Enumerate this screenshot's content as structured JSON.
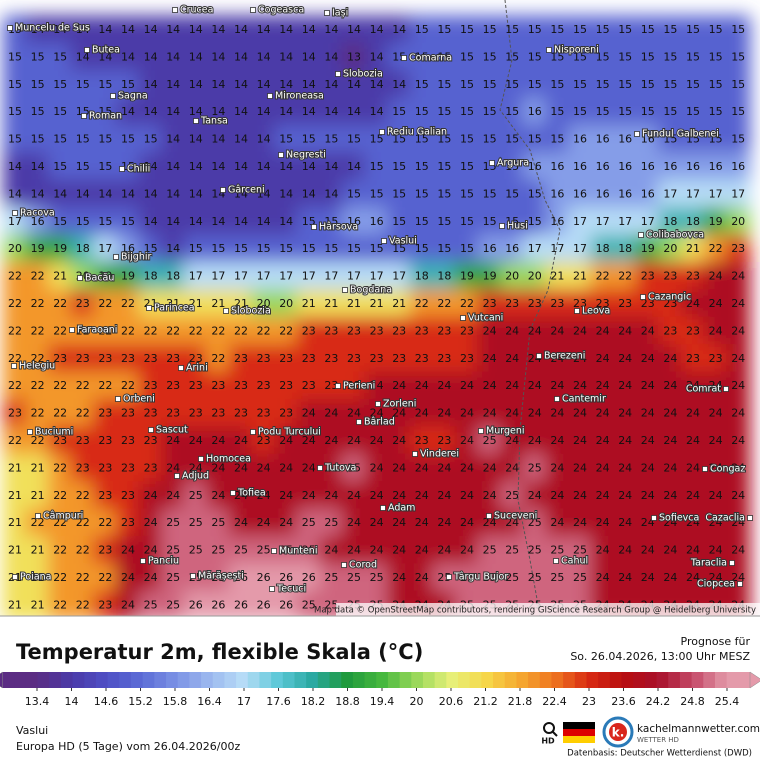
{
  "map": {
    "attribution": "Map data © OpenStreetMap contributors, rendering GIScience Research Group @ Heidelberg University",
    "grid": [
      [
        15,
        14,
        14,
        14,
        14,
        14,
        14,
        14,
        14,
        14,
        14,
        14,
        14,
        14,
        14,
        14,
        14,
        14,
        15,
        15,
        15,
        15,
        15,
        15,
        15,
        15,
        15,
        15,
        15,
        15,
        15,
        15,
        15
      ],
      [
        15,
        15,
        15,
        14,
        14,
        14,
        14,
        14,
        14,
        14,
        14,
        14,
        14,
        14,
        14,
        13,
        14,
        15,
        15,
        15,
        15,
        15,
        15,
        15,
        15,
        15,
        15,
        15,
        15,
        15,
        15,
        15,
        15
      ],
      [
        15,
        15,
        15,
        15,
        15,
        15,
        14,
        14,
        14,
        14,
        14,
        14,
        14,
        14,
        14,
        14,
        14,
        14,
        15,
        15,
        15,
        15,
        15,
        15,
        15,
        15,
        15,
        15,
        15,
        15,
        15,
        15,
        15
      ],
      [
        15,
        15,
        15,
        15,
        15,
        14,
        14,
        14,
        14,
        14,
        14,
        14,
        14,
        14,
        14,
        14,
        14,
        15,
        15,
        15,
        15,
        15,
        15,
        16,
        15,
        15,
        15,
        15,
        15,
        15,
        15,
        15,
        15
      ],
      [
        15,
        15,
        15,
        15,
        15,
        15,
        15,
        14,
        14,
        14,
        14,
        14,
        15,
        15,
        15,
        15,
        15,
        15,
        15,
        15,
        15,
        15,
        15,
        15,
        15,
        16,
        16,
        16,
        16,
        15,
        15,
        15,
        15
      ],
      [
        14,
        14,
        15,
        15,
        15,
        15,
        14,
        14,
        14,
        14,
        14,
        14,
        14,
        14,
        14,
        14,
        15,
        15,
        15,
        15,
        15,
        15,
        15,
        16,
        16,
        16,
        16,
        16,
        16,
        16,
        16,
        16,
        16
      ],
      [
        14,
        14,
        14,
        14,
        14,
        14,
        14,
        14,
        14,
        14,
        14,
        14,
        14,
        14,
        14,
        15,
        15,
        15,
        15,
        15,
        15,
        15,
        15,
        15,
        16,
        16,
        16,
        16,
        16,
        17,
        17,
        17,
        17
      ],
      [
        17,
        16,
        15,
        15,
        15,
        15,
        14,
        14,
        14,
        14,
        14,
        14,
        14,
        15,
        15,
        16,
        16,
        15,
        15,
        15,
        15,
        15,
        15,
        15,
        16,
        17,
        17,
        17,
        17,
        18,
        18,
        19,
        20
      ],
      [
        20,
        19,
        19,
        18,
        17,
        16,
        15,
        14,
        15,
        15,
        15,
        15,
        15,
        15,
        15,
        15,
        15,
        15,
        15,
        15,
        15,
        16,
        16,
        17,
        17,
        17,
        18,
        18,
        19,
        20,
        21,
        22,
        23
      ],
      [
        22,
        22,
        21,
        20,
        19,
        19,
        18,
        18,
        17,
        17,
        17,
        17,
        17,
        17,
        17,
        17,
        17,
        17,
        18,
        18,
        19,
        19,
        20,
        20,
        21,
        21,
        22,
        22,
        23,
        23,
        23,
        24,
        24
      ],
      [
        22,
        22,
        22,
        23,
        22,
        22,
        21,
        21,
        21,
        21,
        21,
        20,
        20,
        21,
        21,
        21,
        21,
        21,
        22,
        22,
        22,
        23,
        23,
        23,
        23,
        23,
        23,
        23,
        23,
        23,
        24,
        24,
        24
      ],
      [
        22,
        22,
        22,
        22,
        22,
        22,
        22,
        22,
        22,
        22,
        22,
        22,
        22,
        23,
        23,
        23,
        23,
        23,
        23,
        23,
        23,
        24,
        24,
        24,
        24,
        24,
        24,
        24,
        24,
        23,
        23,
        24,
        24
      ],
      [
        22,
        22,
        23,
        23,
        23,
        23,
        23,
        23,
        23,
        22,
        23,
        23,
        23,
        23,
        23,
        23,
        23,
        23,
        23,
        23,
        23,
        24,
        24,
        24,
        24,
        24,
        24,
        24,
        24,
        24,
        23,
        23,
        24
      ],
      [
        22,
        22,
        22,
        22,
        22,
        22,
        23,
        23,
        23,
        23,
        23,
        23,
        23,
        23,
        23,
        23,
        24,
        24,
        24,
        24,
        24,
        24,
        24,
        24,
        24,
        24,
        24,
        24,
        24,
        24,
        24,
        24,
        24
      ],
      [
        23,
        22,
        22,
        22,
        23,
        23,
        23,
        23,
        23,
        23,
        23,
        23,
        23,
        24,
        24,
        24,
        24,
        24,
        24,
        24,
        24,
        24,
        24,
        24,
        24,
        24,
        24,
        24,
        24,
        24,
        24,
        24,
        24
      ],
      [
        22,
        22,
        23,
        23,
        23,
        23,
        23,
        24,
        24,
        24,
        24,
        23,
        24,
        24,
        24,
        24,
        24,
        24,
        23,
        23,
        24,
        25,
        24,
        24,
        24,
        24,
        24,
        24,
        24,
        24,
        24,
        24,
        24
      ],
      [
        21,
        21,
        22,
        23,
        23,
        23,
        23,
        24,
        24,
        24,
        24,
        24,
        24,
        24,
        24,
        25,
        24,
        24,
        24,
        24,
        24,
        24,
        24,
        25,
        24,
        24,
        24,
        24,
        24,
        24,
        24,
        24,
        24
      ],
      [
        21,
        21,
        22,
        22,
        23,
        23,
        24,
        24,
        25,
        24,
        24,
        24,
        24,
        24,
        24,
        24,
        24,
        24,
        24,
        24,
        24,
        24,
        25,
        24,
        24,
        24,
        24,
        24,
        24,
        24,
        24,
        24,
        24
      ],
      [
        21,
        22,
        22,
        22,
        22,
        23,
        24,
        25,
        25,
        25,
        24,
        24,
        24,
        25,
        25,
        24,
        24,
        24,
        24,
        24,
        24,
        24,
        24,
        25,
        24,
        24,
        24,
        24,
        24,
        24,
        24,
        24,
        24
      ],
      [
        21,
        21,
        22,
        22,
        23,
        24,
        24,
        25,
        25,
        25,
        25,
        25,
        25,
        25,
        24,
        24,
        24,
        24,
        24,
        24,
        24,
        25,
        25,
        25,
        25,
        25,
        24,
        24,
        24,
        24,
        24,
        24,
        24
      ],
      [
        21,
        21,
        22,
        22,
        22,
        24,
        24,
        25,
        25,
        25,
        26,
        26,
        26,
        26,
        25,
        25,
        25,
        24,
        24,
        25,
        25,
        25,
        25,
        25,
        25,
        25,
        24,
        24,
        24,
        24,
        24,
        24,
        24
      ],
      [
        21,
        21,
        22,
        22,
        23,
        24,
        25,
        25,
        26,
        26,
        26,
        26,
        26,
        25,
        25,
        25,
        25,
        24,
        24,
        24,
        25,
        25,
        25,
        25,
        25,
        25,
        24,
        24,
        24,
        24,
        24,
        24,
        24
      ]
    ],
    "places": [
      "Muncelu de Sus",
      "Crucea",
      "Cogeasca",
      "Iași",
      "Butea",
      "Nisporeni",
      "Comarna",
      "Slobozia",
      "Sagna",
      "Mironeasa",
      "Roman",
      "Tansa",
      "Rediu Galian",
      "Fundul Galbenei",
      "Negresti",
      "Chilii",
      "Argura",
      "Gârceni",
      "Racova",
      "Hârsova",
      "Husi",
      "Vaslui",
      "Colibabovca",
      "Bijghir",
      "Bacău",
      "Bogdana",
      "Cazangic",
      "Parincea",
      "Slobozia",
      "Leova",
      "Faraoani",
      "Vutcani",
      "Berezeni",
      "Helegiu",
      "Arini",
      "Perieni",
      "Comrat",
      "Cantemir",
      "Orbeni",
      "Zorleni",
      "Bârlad",
      "Buciumi",
      "Sascut",
      "Podu Turcului",
      "Murgeni",
      "Homocea",
      "Vinderei",
      "Adjud",
      "Tutova",
      "Congaz",
      "Tofiea",
      "Adam",
      "Câmpuri",
      "Suceveni",
      "Sofievca",
      "Cazaclia",
      "Munteni",
      "Cahul",
      "Panciu",
      "Taraclia",
      "Corod",
      "Ciopcea",
      "Poiana",
      "Mărășești",
      "Târgu Bujor",
      "Tecuci"
    ]
  },
  "legend": {
    "title": "Temperatur 2m, flexible Skala (°C)",
    "forecast_label": "Prognose für",
    "forecast_time": "So. 26.04.2026, 13:00 Uhr MESZ",
    "scale_ticks": [
      13.4,
      14,
      14.6,
      15.2,
      15.8,
      16.4,
      17,
      17.6,
      18.2,
      18.8,
      19.4,
      20,
      20.6,
      21.2,
      21.8,
      22.4,
      23,
      23.6,
      24.2,
      24.8,
      25.4
    ],
    "scale_colors": [
      "#5b2c83",
      "#4b3aa8",
      "#4e4fc4",
      "#5b6bd6",
      "#7a90e4",
      "#9cb8ef",
      "#b8ddf7",
      "#5cc8d8",
      "#2aa8a0",
      "#1f9a3c",
      "#46b83e",
      "#9ad85a",
      "#e6f07a",
      "#f6d84a",
      "#f5a830",
      "#ee7420",
      "#d82a12",
      "#b80d10",
      "#a8102a",
      "#c44a68",
      "#e49aaa"
    ]
  },
  "footer": {
    "location": "Vaslui",
    "model": "Europa HD (5 Tage) vom 26.04.2026/00z",
    "hd": "HD",
    "brand": "kachelmannwetter.com",
    "brand_sub": "WETTER HD",
    "source": "Datenbasis: Deutscher Wetterdienst (DWD)"
  }
}
